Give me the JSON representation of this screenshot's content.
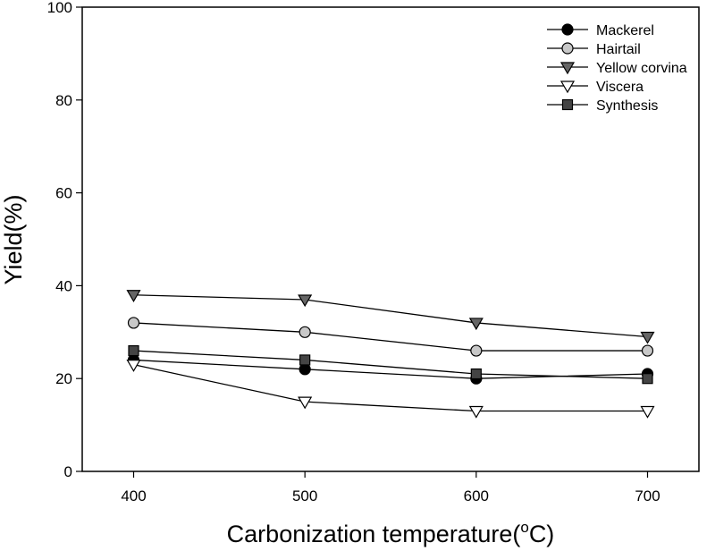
{
  "chart_data": {
    "type": "line",
    "xlabel": "Carbonization temperature(",
    "xlabel_sup": "o",
    "xlabel_suffix": "C)",
    "ylabel": "Yield(%)",
    "x": [
      400,
      500,
      600,
      700
    ],
    "x_ticks": [
      "400",
      "500",
      "600",
      "700"
    ],
    "y_ticks": [
      "0",
      "20",
      "40",
      "60",
      "80",
      "100"
    ],
    "xlim": [
      370,
      730
    ],
    "ylim": [
      0,
      100
    ],
    "grid": false,
    "legend_position": "top-right",
    "series": [
      {
        "name": "Mackerel",
        "values": [
          24,
          22,
          20,
          21
        ],
        "marker": "circle",
        "fill": "#000000"
      },
      {
        "name": "Hairtail",
        "values": [
          32,
          30,
          26,
          26
        ],
        "marker": "circle",
        "fill": "#c8c8c8"
      },
      {
        "name": "Yellow corvina",
        "values": [
          38,
          37,
          32,
          29
        ],
        "marker": "triangle-down",
        "fill": "#666666"
      },
      {
        "name": "Viscera",
        "values": [
          23,
          15,
          13,
          13
        ],
        "marker": "triangle-down",
        "fill": "#ffffff"
      },
      {
        "name": "Synthesis",
        "values": [
          26,
          24,
          21,
          20
        ],
        "marker": "square",
        "fill": "#444444"
      }
    ]
  }
}
